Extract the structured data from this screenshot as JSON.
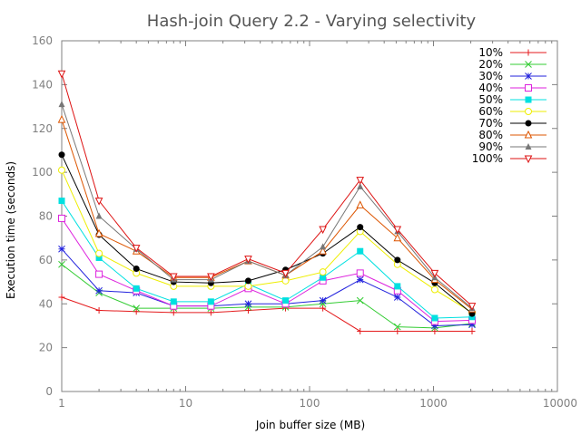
{
  "chart_data": {
    "type": "line",
    "title": "Hash-join Query 2.2 - Varying selectivity",
    "xlabel": "Join buffer size (MB)",
    "ylabel": "Execution time (seconds)",
    "xscale": "log",
    "xlim": [
      1,
      10000
    ],
    "ylim": [
      0,
      160
    ],
    "xticks": [
      1,
      10,
      100,
      1000,
      10000
    ],
    "xtick_labels": [
      "1",
      "10",
      "100",
      "1000",
      "10000"
    ],
    "yticks": [
      0,
      20,
      40,
      60,
      80,
      100,
      120,
      140,
      160
    ],
    "ytick_labels": [
      "0",
      "20",
      "40",
      "60",
      "80",
      "100",
      "120",
      "140",
      "160"
    ],
    "grid": false,
    "legend_position": "top-right",
    "x": [
      1,
      2,
      4,
      8,
      16,
      32,
      64,
      128,
      256,
      512,
      1024,
      2048
    ],
    "series": [
      {
        "name": "10%",
        "color": "#e41a1c",
        "marker": "plus",
        "values": [
          43,
          37,
          36.5,
          36,
          36,
          37,
          38,
          38,
          27.5,
          27.5,
          27.5,
          27.5
        ]
      },
      {
        "name": "20%",
        "color": "#33cc33",
        "marker": "cross",
        "values": [
          58,
          45,
          38,
          38,
          38,
          38.5,
          38.5,
          40,
          41.5,
          29.5,
          29,
          31
        ]
      },
      {
        "name": "30%",
        "color": "#2222dd",
        "marker": "star",
        "values": [
          65,
          46,
          45,
          39,
          39,
          40,
          40,
          41.5,
          51,
          43,
          30,
          30.5
        ]
      },
      {
        "name": "40%",
        "color": "#dd22dd",
        "marker": "square-open",
        "values": [
          79,
          53.5,
          46,
          39,
          39,
          47,
          40,
          50.5,
          54,
          46,
          32,
          32.5
        ]
      },
      {
        "name": "50%",
        "color": "#00e0e0",
        "marker": "square",
        "values": [
          87,
          61,
          47,
          41,
          41,
          49,
          41.5,
          52,
          64,
          48,
          33.5,
          34
        ]
      },
      {
        "name": "60%",
        "color": "#eeee00",
        "marker": "circle-open",
        "values": [
          101,
          63,
          54,
          48,
          48,
          48,
          50.5,
          54.5,
          73,
          58,
          46.5,
          36
        ]
      },
      {
        "name": "70%",
        "color": "#000000",
        "marker": "circle",
        "values": [
          108,
          71.5,
          56,
          50,
          49.5,
          50.5,
          55.5,
          63,
          75,
          60,
          49.5,
          35.5
        ]
      },
      {
        "name": "80%",
        "color": "#dd5500",
        "marker": "triangle-open",
        "values": [
          124,
          72,
          64,
          52,
          52,
          59.5,
          53,
          64,
          85,
          70,
          51,
          37.5
        ]
      },
      {
        "name": "90%",
        "color": "#777777",
        "marker": "triangle",
        "values": [
          131,
          80,
          65,
          51,
          51,
          59.5,
          53,
          66,
          93.5,
          73,
          52,
          38
        ]
      },
      {
        "name": "100%",
        "color": "#dd1111",
        "marker": "triangle-down-open",
        "values": [
          145,
          87,
          65.5,
          52.5,
          52.5,
          60.5,
          54,
          74,
          96.5,
          74,
          54,
          39
        ]
      }
    ]
  }
}
